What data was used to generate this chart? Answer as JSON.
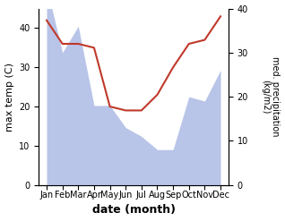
{
  "months": [
    "Jan",
    "Feb",
    "Mar",
    "Apr",
    "May",
    "Jun",
    "Jul",
    "Aug",
    "Sep",
    "Oct",
    "Nov",
    "Dec"
  ],
  "x": [
    0,
    1,
    2,
    3,
    4,
    5,
    6,
    7,
    8,
    9,
    10,
    11
  ],
  "temperature": [
    42,
    36,
    36,
    35,
    20,
    19,
    19,
    23,
    30,
    36,
    37,
    43
  ],
  "precipitation": [
    45,
    30,
    36,
    18,
    18,
    13,
    11,
    8,
    8,
    20,
    19,
    26
  ],
  "temp_color": "#c0392b",
  "precip_color": "#b8c4e8",
  "ylabel_left": "max temp (C)",
  "ylabel_right": "med. precipitation\n(kg/m2)",
  "xlabel": "date (month)",
  "ylim_left": [
    0,
    45
  ],
  "ylim_right": [
    0,
    40
  ],
  "left_yticks": [
    0,
    10,
    20,
    30,
    40
  ],
  "right_yticks": [
    0,
    10,
    20,
    30,
    40
  ],
  "label_fontsize": 8,
  "tick_fontsize": 7,
  "xlabel_fontsize": 9
}
